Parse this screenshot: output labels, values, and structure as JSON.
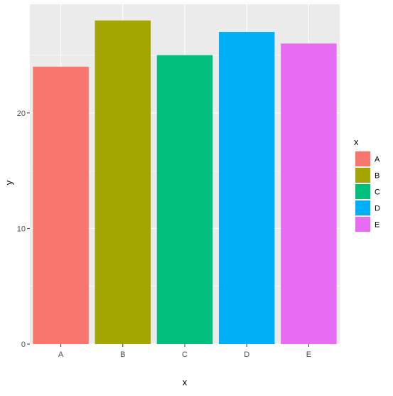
{
  "chart_data": {
    "type": "bar",
    "title": "",
    "xlabel": "x",
    "ylabel": "y",
    "categories": [
      "A",
      "B",
      "C",
      "D",
      "E"
    ],
    "values": [
      24,
      28,
      25,
      27,
      26
    ],
    "colors": [
      "#F8766D",
      "#A3A500",
      "#00BF7D",
      "#00B0F6",
      "#E76BF3"
    ],
    "ylim": [
      -0.0,
      29.4
    ],
    "y_ticks": [
      0,
      10,
      20
    ],
    "y_tick_labels": [
      "0",
      "10",
      "20"
    ],
    "grid": true,
    "panel_background": "#EBEBEB",
    "grid_color": "#FFFFFF",
    "legend": {
      "title": "x",
      "placement": "right",
      "entries": [
        "A",
        "B",
        "C",
        "D",
        "E"
      ]
    }
  }
}
